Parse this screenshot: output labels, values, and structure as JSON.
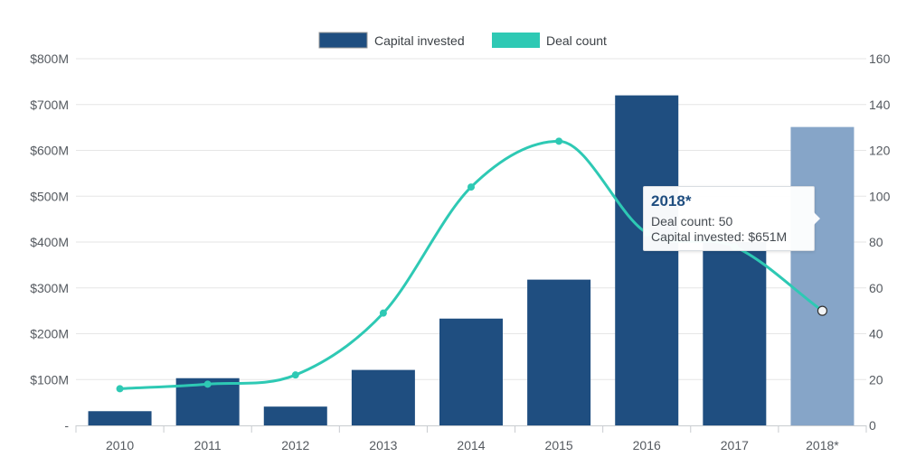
{
  "chart_data": {
    "type": "bar",
    "categories": [
      "2010",
      "2011",
      "2012",
      "2013",
      "2014",
      "2015",
      "2016",
      "2017",
      "2018*"
    ],
    "series": [
      {
        "name": "Capital invested",
        "type": "bar",
        "axis": "left",
        "color": "#1f4e80",
        "highlight_color": "#86a5c8",
        "values": [
          31,
          103,
          41,
          121,
          233,
          318,
          720,
          400,
          651
        ]
      },
      {
        "name": "Deal count",
        "type": "line",
        "axis": "right",
        "color": "#2ec9b4",
        "values": [
          16,
          18,
          22,
          49,
          104,
          124,
          84,
          78,
          50
        ]
      }
    ],
    "y_left": {
      "ylim": [
        0,
        800
      ],
      "ticks": [
        0,
        100,
        200,
        300,
        400,
        500,
        600,
        700,
        800
      ],
      "tick_labels": [
        "-",
        "$100M",
        "$200M",
        "$300M",
        "$400M",
        "$500M",
        "$600M",
        "$700M",
        "$800M"
      ]
    },
    "y_right": {
      "ylim": [
        0,
        160
      ],
      "ticks": [
        0,
        20,
        40,
        60,
        80,
        100,
        120,
        140,
        160
      ],
      "tick_labels": [
        "0",
        "20",
        "40",
        "60",
        "80",
        "100",
        "120",
        "140",
        "160"
      ]
    },
    "grid": true,
    "legend_position": "top-center",
    "highlighted_category": "2018*"
  },
  "tooltip": {
    "title": "2018*",
    "deal_line": "Deal count: 50",
    "capital_line": "Capital invested: $651M"
  }
}
